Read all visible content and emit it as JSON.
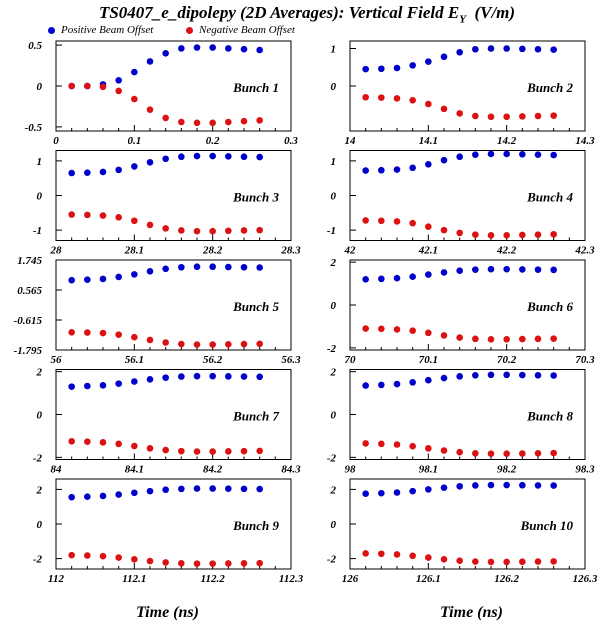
{
  "title_main": "TS0407_e_dipolepy (2D Averages): Vertical Field E",
  "title_sub": "Y",
  "title_unit": "(V/m)",
  "colors": {
    "positive": "#0000cc",
    "negative": "#dd1111"
  },
  "legend": {
    "positive": "Positive Beam Offset",
    "negative": "Negative Beam Offset"
  },
  "xlabel_left": "Time (ns)",
  "xlabel_right": "Time (ns)",
  "chart_data": [
    {
      "type": "scatter",
      "label": "Bunch 1",
      "xlim": [
        0,
        0.3
      ],
      "xticks": [
        "0",
        "0.1",
        "0.2",
        "0.3"
      ],
      "xtick_values": [
        0,
        0.1,
        0.2,
        0.3
      ],
      "ylim": [
        -0.55,
        0.55
      ],
      "yticks": [
        "0.5",
        "0",
        "-0.5"
      ],
      "ytick_values": [
        0.5,
        0,
        -0.5
      ],
      "x": [
        0.02,
        0.04,
        0.06,
        0.08,
        0.1,
        0.12,
        0.14,
        0.16,
        0.18,
        0.2,
        0.22,
        0.24,
        0.26
      ],
      "series": [
        {
          "name": "Positive Beam Offset",
          "values": [
            0.0,
            0.0,
            0.02,
            0.07,
            0.17,
            0.3,
            0.4,
            0.46,
            0.47,
            0.47,
            0.46,
            0.45,
            0.44
          ]
        },
        {
          "name": "Negative Beam Offset",
          "values": [
            0.0,
            0.0,
            -0.01,
            -0.06,
            -0.16,
            -0.29,
            -0.39,
            -0.44,
            -0.45,
            -0.45,
            -0.44,
            -0.43,
            -0.42
          ]
        }
      ]
    },
    {
      "type": "scatter",
      "label": "Bunch 2",
      "xlim": [
        14,
        14.3
      ],
      "xticks": [
        "14",
        "14.1",
        "14.2",
        "14.3"
      ],
      "xtick_values": [
        14,
        14.1,
        14.2,
        14.3
      ],
      "ylim": [
        -1.2,
        1.2
      ],
      "yticks": [
        "1",
        "0"
      ],
      "ytick_values": [
        1,
        0
      ],
      "x": [
        14.02,
        14.04,
        14.06,
        14.08,
        14.1,
        14.12,
        14.14,
        14.16,
        14.18,
        14.2,
        14.22,
        14.24,
        14.26
      ],
      "series": [
        {
          "name": "Positive Beam Offset",
          "values": [
            0.45,
            0.46,
            0.48,
            0.55,
            0.65,
            0.78,
            0.9,
            0.98,
            1.0,
            1.0,
            0.99,
            0.98,
            0.97
          ]
        },
        {
          "name": "Negative Beam Offset",
          "values": [
            -0.3,
            -0.31,
            -0.33,
            -0.38,
            -0.48,
            -0.61,
            -0.73,
            -0.8,
            -0.82,
            -0.82,
            -0.81,
            -0.8,
            -0.79
          ]
        }
      ]
    },
    {
      "type": "scatter",
      "label": "Bunch 3",
      "xlim": [
        28,
        28.3
      ],
      "xticks": [
        "28",
        "28.1",
        "28.2",
        "28.3"
      ],
      "xtick_values": [
        28,
        28.1,
        28.2,
        28.3
      ],
      "ylim": [
        -1.3,
        1.3
      ],
      "yticks": [
        "1",
        "0",
        "-1"
      ],
      "ytick_values": [
        1,
        0,
        -1
      ],
      "x": [
        28.02,
        28.04,
        28.06,
        28.08,
        28.1,
        28.12,
        28.14,
        28.16,
        28.18,
        28.2,
        28.22,
        28.24,
        28.26
      ],
      "series": [
        {
          "name": "Positive Beam Offset",
          "values": [
            0.65,
            0.66,
            0.68,
            0.74,
            0.84,
            0.96,
            1.06,
            1.12,
            1.14,
            1.14,
            1.13,
            1.12,
            1.11
          ]
        },
        {
          "name": "Negative Beam Offset",
          "values": [
            -0.55,
            -0.56,
            -0.58,
            -0.63,
            -0.73,
            -0.85,
            -0.95,
            -1.01,
            -1.03,
            -1.03,
            -1.02,
            -1.01,
            -1.0
          ]
        }
      ]
    },
    {
      "type": "scatter",
      "label": "Bunch 4",
      "xlim": [
        42,
        42.3
      ],
      "xticks": [
        "42",
        "42.1",
        "42.2",
        "42.3"
      ],
      "xtick_values": [
        42,
        42.1,
        42.2,
        42.3
      ],
      "ylim": [
        -1.3,
        1.3
      ],
      "yticks": [
        "1",
        "0",
        "-1"
      ],
      "ytick_values": [
        1,
        0,
        -1
      ],
      "x": [
        42.02,
        42.04,
        42.06,
        42.08,
        42.1,
        42.12,
        42.14,
        42.16,
        42.18,
        42.2,
        42.22,
        42.24,
        42.26
      ],
      "series": [
        {
          "name": "Positive Beam Offset",
          "values": [
            0.72,
            0.73,
            0.75,
            0.8,
            0.9,
            1.02,
            1.12,
            1.18,
            1.2,
            1.2,
            1.19,
            1.18,
            1.17
          ]
        },
        {
          "name": "Negative Beam Offset",
          "values": [
            -0.72,
            -0.73,
            -0.75,
            -0.8,
            -0.9,
            -1.0,
            -1.08,
            -1.13,
            -1.15,
            -1.15,
            -1.14,
            -1.13,
            -1.12
          ]
        }
      ]
    },
    {
      "type": "scatter",
      "label": "Bunch 5",
      "xlim": [
        56,
        56.3
      ],
      "xticks": [
        "56",
        "56.1",
        "56.2",
        "56.3"
      ],
      "xtick_values": [
        56,
        56.1,
        56.2,
        56.3
      ],
      "ylim": [
        -1.795,
        1.745
      ],
      "yticks": [
        "1.745",
        "0.565",
        "-0.615",
        "-1.795"
      ],
      "ytick_values": [
        1.745,
        0.565,
        -0.615,
        -1.795
      ],
      "x": [
        56.02,
        56.04,
        56.06,
        56.08,
        56.1,
        56.12,
        56.14,
        56.16,
        56.18,
        56.2,
        56.22,
        56.24,
        56.26
      ],
      "series": [
        {
          "name": "Positive Beam Offset",
          "values": [
            0.95,
            0.97,
            1.0,
            1.08,
            1.18,
            1.3,
            1.4,
            1.46,
            1.48,
            1.48,
            1.47,
            1.46,
            1.45
          ]
        },
        {
          "name": "Negative Beam Offset",
          "values": [
            -1.1,
            -1.11,
            -1.13,
            -1.19,
            -1.29,
            -1.4,
            -1.5,
            -1.56,
            -1.58,
            -1.58,
            -1.57,
            -1.56,
            -1.55
          ]
        }
      ]
    },
    {
      "type": "scatter",
      "label": "Bunch 6",
      "xlim": [
        70,
        70.3
      ],
      "xticks": [
        "70",
        "70.1",
        "70.2",
        "70.3"
      ],
      "xtick_values": [
        70,
        70.1,
        70.2,
        70.3
      ],
      "ylim": [
        -2.1,
        2.1
      ],
      "yticks": [
        "2",
        "0",
        "-2"
      ],
      "ytick_values": [
        2,
        0,
        -2
      ],
      "x": [
        70.02,
        70.04,
        70.06,
        70.08,
        70.1,
        70.12,
        70.14,
        70.16,
        70.18,
        70.2,
        70.22,
        70.24,
        70.26
      ],
      "series": [
        {
          "name": "Positive Beam Offset",
          "values": [
            1.2,
            1.22,
            1.25,
            1.32,
            1.42,
            1.52,
            1.6,
            1.65,
            1.67,
            1.67,
            1.66,
            1.65,
            1.64
          ]
        },
        {
          "name": "Negative Beam Offset",
          "values": [
            -1.1,
            -1.11,
            -1.14,
            -1.2,
            -1.3,
            -1.42,
            -1.52,
            -1.58,
            -1.6,
            -1.6,
            -1.59,
            -1.58,
            -1.57
          ]
        }
      ]
    },
    {
      "type": "scatter",
      "label": "Bunch 7",
      "xlim": [
        84,
        84.3
      ],
      "xticks": [
        "84",
        "84.1",
        "84.2",
        "84.3"
      ],
      "xtick_values": [
        84,
        84.1,
        84.2,
        84.3
      ],
      "ylim": [
        -2.1,
        2.1
      ],
      "yticks": [
        "2",
        "0",
        "-2"
      ],
      "ytick_values": [
        2,
        0,
        -2
      ],
      "x": [
        84.02,
        84.04,
        84.06,
        84.08,
        84.1,
        84.12,
        84.14,
        84.16,
        84.18,
        84.2,
        84.22,
        84.24,
        84.26
      ],
      "series": [
        {
          "name": "Positive Beam Offset",
          "values": [
            1.3,
            1.33,
            1.36,
            1.44,
            1.54,
            1.64,
            1.72,
            1.77,
            1.79,
            1.79,
            1.78,
            1.77,
            1.76
          ]
        },
        {
          "name": "Negative Beam Offset",
          "values": [
            -1.25,
            -1.27,
            -1.3,
            -1.37,
            -1.47,
            -1.58,
            -1.66,
            -1.71,
            -1.73,
            -1.73,
            -1.72,
            -1.71,
            -1.7
          ]
        }
      ]
    },
    {
      "type": "scatter",
      "label": "Bunch 8",
      "xlim": [
        98,
        98.3
      ],
      "xticks": [
        "98",
        "98.1",
        "98.2",
        "98.3"
      ],
      "xtick_values": [
        98,
        98.1,
        98.2,
        98.3
      ],
      "ylim": [
        -2.1,
        2.1
      ],
      "yticks": [
        "2",
        "0",
        "-2"
      ],
      "ytick_values": [
        2,
        0,
        -2
      ],
      "x": [
        98.02,
        98.04,
        98.06,
        98.08,
        98.1,
        98.12,
        98.14,
        98.16,
        98.18,
        98.2,
        98.22,
        98.24,
        98.26
      ],
      "series": [
        {
          "name": "Positive Beam Offset",
          "values": [
            1.35,
            1.38,
            1.42,
            1.5,
            1.6,
            1.7,
            1.78,
            1.83,
            1.85,
            1.85,
            1.84,
            1.83,
            1.82
          ]
        },
        {
          "name": "Negative Beam Offset",
          "values": [
            -1.35,
            -1.37,
            -1.4,
            -1.48,
            -1.58,
            -1.68,
            -1.76,
            -1.81,
            -1.83,
            -1.83,
            -1.82,
            -1.81,
            -1.8
          ]
        }
      ]
    },
    {
      "type": "scatter",
      "label": "Bunch 9",
      "xlim": [
        112,
        112.3
      ],
      "xticks": [
        "112",
        "112.1",
        "112.2",
        "112.3"
      ],
      "xtick_values": [
        112,
        112.1,
        112.2,
        112.3
      ],
      "ylim": [
        -2.6,
        2.6
      ],
      "yticks": [
        "2",
        "0",
        "-2"
      ],
      "ytick_values": [
        2,
        0,
        -2
      ],
      "x": [
        112.02,
        112.04,
        112.06,
        112.08,
        112.1,
        112.12,
        112.14,
        112.16,
        112.18,
        112.2,
        112.22,
        112.24,
        112.26
      ],
      "series": [
        {
          "name": "Positive Beam Offset",
          "values": [
            1.55,
            1.58,
            1.62,
            1.7,
            1.8,
            1.9,
            1.98,
            2.03,
            2.05,
            2.05,
            2.04,
            2.03,
            2.02
          ]
        },
        {
          "name": "Negative Beam Offset",
          "values": [
            -1.8,
            -1.82,
            -1.86,
            -1.94,
            -2.04,
            -2.14,
            -2.22,
            -2.27,
            -2.29,
            -2.29,
            -2.28,
            -2.27,
            -2.26
          ]
        }
      ]
    },
    {
      "type": "scatter",
      "label": "Bunch 10",
      "xlim": [
        126,
        126.3
      ],
      "xticks": [
        "126",
        "126.1",
        "126.2",
        "126.3"
      ],
      "xtick_values": [
        126,
        126.1,
        126.2,
        126.3
      ],
      "ylim": [
        -2.6,
        2.6
      ],
      "yticks": [
        "2",
        "0",
        "-2"
      ],
      "ytick_values": [
        2,
        0,
        -2
      ],
      "x": [
        126.02,
        126.04,
        126.06,
        126.08,
        126.1,
        126.12,
        126.14,
        126.16,
        126.18,
        126.2,
        126.22,
        126.24,
        126.26
      ],
      "series": [
        {
          "name": "Positive Beam Offset",
          "values": [
            1.75,
            1.78,
            1.82,
            1.9,
            2.0,
            2.1,
            2.18,
            2.23,
            2.25,
            2.25,
            2.24,
            2.23,
            2.22
          ]
        },
        {
          "name": "Negative Beam Offset",
          "values": [
            -1.7,
            -1.72,
            -1.76,
            -1.84,
            -1.94,
            -2.04,
            -2.12,
            -2.17,
            -2.19,
            -2.19,
            -2.18,
            -2.17,
            -2.16
          ]
        }
      ]
    }
  ]
}
